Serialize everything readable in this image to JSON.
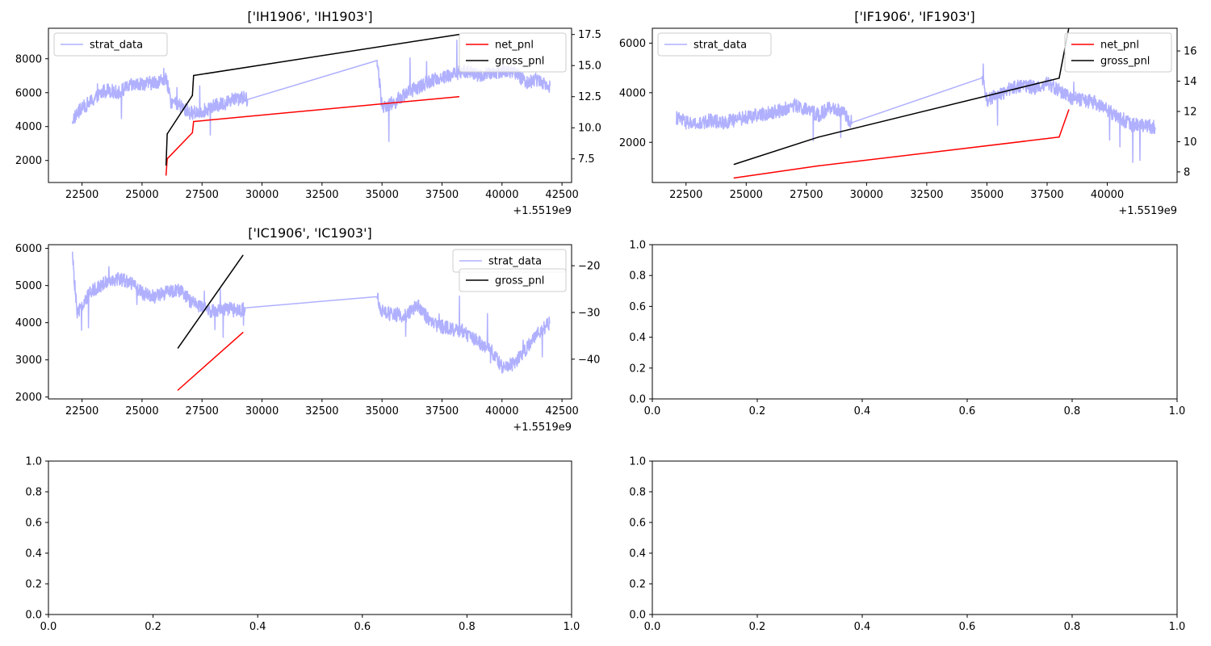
{
  "figure": {
    "background": "#ffffff"
  },
  "colors": {
    "strat_data": "#b0b0ff",
    "net_pnl": "#ff0000",
    "gross_pnl": "#000000"
  },
  "chart_data": [
    {
      "type": "line",
      "title": "['IH1906', 'IH1903']",
      "x_offset_label": "+1.5519e9",
      "xlim": [
        21100,
        42900
      ],
      "x_ticks": [
        22500,
        25000,
        27500,
        30000,
        32500,
        35000,
        37500,
        40000,
        42500
      ],
      "x_tick_labels": [
        "22500",
        "25000",
        "27500",
        "30000",
        "32500",
        "35000",
        "37500",
        "40000",
        "42500"
      ],
      "left_axis": {
        "ylim": [
          700,
          9800
        ],
        "ticks": [
          2000,
          4000,
          6000,
          8000
        ],
        "tick_labels": [
          "2000",
          "4000",
          "6000",
          "8000"
        ]
      },
      "right_axis": {
        "ylim": [
          5.6,
          18.0
        ],
        "ticks": [
          7.5,
          10.0,
          12.5,
          15.0,
          17.5
        ],
        "tick_labels": [
          "7.5",
          "10.0",
          "12.5",
          "15.0",
          "17.5"
        ]
      },
      "legend_left": {
        "position": "upper left",
        "entries": [
          "strat_data"
        ]
      },
      "legend_right": {
        "position": "upper right",
        "entries": [
          "net_pnl",
          "gross_pnl"
        ]
      },
      "series": [
        {
          "name": "strat_data",
          "axis": "left",
          "color": "#b0b0ff",
          "noisy": true,
          "x": [
            22100,
            22500,
            23000,
            23500,
            24000,
            24500,
            25000,
            25500,
            26000,
            26200,
            26600,
            27000,
            27500,
            28000,
            28500,
            29000,
            29400,
            34800,
            35000,
            35500,
            36000,
            36500,
            37000,
            37500,
            38000,
            38500,
            39000,
            39500,
            40000,
            40500,
            41000,
            41500,
            42000
          ],
          "y": [
            4400,
            5100,
            5600,
            6200,
            6000,
            6400,
            6500,
            6600,
            6800,
            5500,
            5200,
            4800,
            4900,
            5200,
            5400,
            5800,
            5600,
            7900,
            5200,
            5400,
            6000,
            6300,
            6700,
            6900,
            7100,
            7300,
            7000,
            7100,
            7300,
            7200,
            6600,
            6800,
            6400
          ]
        },
        {
          "name": "net_pnl",
          "axis": "right",
          "color": "#ff0000",
          "noisy": false,
          "x": [
            26000,
            26050,
            27100,
            27150,
            38200
          ],
          "y": [
            6.2,
            7.5,
            9.6,
            10.5,
            12.5
          ]
        },
        {
          "name": "gross_pnl",
          "axis": "right",
          "color": "#000000",
          "noisy": false,
          "x": [
            26000,
            26050,
            27100,
            27150,
            38200
          ],
          "y": [
            7.0,
            9.5,
            12.6,
            14.2,
            17.5
          ]
        }
      ]
    },
    {
      "type": "line",
      "title": "['IF1906', 'IF1903']",
      "x_offset_label": "+1.5519e9",
      "xlim": [
        21100,
        42900
      ],
      "x_ticks": [
        22500,
        25000,
        27500,
        30000,
        32500,
        35000,
        37500,
        40000
      ],
      "x_tick_labels": [
        "22500",
        "25000",
        "27500",
        "30000",
        "32500",
        "35000",
        "37500",
        "40000"
      ],
      "left_axis": {
        "ylim": [
          380,
          6600
        ],
        "ticks": [
          2000,
          4000,
          6000
        ],
        "tick_labels": [
          "2000",
          "4000",
          "6000"
        ]
      },
      "right_axis": {
        "ylim": [
          7.3,
          17.5
        ],
        "ticks": [
          8,
          10,
          12,
          14,
          16
        ],
        "tick_labels": [
          "8",
          "10",
          "12",
          "14",
          "16"
        ]
      },
      "legend_left": {
        "position": "upper left",
        "entries": [
          "strat_data"
        ]
      },
      "legend_right": {
        "position": "upper right",
        "entries": [
          "net_pnl",
          "gross_pnl"
        ]
      },
      "series": [
        {
          "name": "strat_data",
          "axis": "left",
          "color": "#b0b0ff",
          "noisy": true,
          "x": [
            22100,
            22500,
            23000,
            23500,
            24000,
            24500,
            25000,
            25500,
            26000,
            26500,
            27000,
            27500,
            28000,
            28500,
            29000,
            29400,
            34800,
            35000,
            35500,
            36000,
            36500,
            37000,
            37500,
            38000,
            38500,
            39000,
            39500,
            40000,
            40500,
            41000,
            41500,
            42000
          ],
          "y": [
            3000,
            2800,
            2700,
            2900,
            2800,
            2900,
            3000,
            3100,
            3200,
            3300,
            3500,
            3300,
            3100,
            3400,
            3200,
            2800,
            4600,
            3700,
            3900,
            4200,
            4300,
            4200,
            4400,
            4100,
            3800,
            3700,
            3600,
            3300,
            3000,
            2700,
            2700,
            2600
          ]
        },
        {
          "name": "net_pnl",
          "axis": "right",
          "color": "#ff0000",
          "noisy": false,
          "x": [
            24500,
            28000,
            38000,
            38400
          ],
          "y": [
            7.6,
            8.4,
            10.3,
            12.1
          ]
        },
        {
          "name": "gross_pnl",
          "axis": "right",
          "color": "#000000",
          "noisy": false,
          "x": [
            24500,
            28000,
            38000,
            38400
          ],
          "y": [
            8.5,
            10.3,
            14.2,
            17.5
          ]
        }
      ]
    },
    {
      "type": "line",
      "title": "['IC1906', 'IC1903']",
      "x_offset_label": "+1.5519e9",
      "xlim": [
        21100,
        42900
      ],
      "x_ticks": [
        22500,
        25000,
        27500,
        30000,
        32500,
        35000,
        37500,
        40000,
        42500
      ],
      "x_tick_labels": [
        "22500",
        "25000",
        "27500",
        "30000",
        "32500",
        "35000",
        "37500",
        "40000",
        "42500"
      ],
      "left_axis": {
        "ylim": [
          1950,
          6100
        ],
        "ticks": [
          2000,
          3000,
          4000,
          5000,
          6000
        ],
        "tick_labels": [
          "2000",
          "3000",
          "4000",
          "5000",
          "6000"
        ]
      },
      "right_axis": {
        "ylim": [
          -48.5,
          -15.5
        ],
        "ticks": [
          -40,
          -30,
          -20
        ],
        "tick_labels": [
          "−40",
          "−30",
          "−20"
        ]
      },
      "legend_left": {
        "position": "upper right",
        "entries": [
          "strat_data"
        ]
      },
      "legend_right": {
        "position": "upper right",
        "entries": [
          "gross_pnl"
        ]
      },
      "series": [
        {
          "name": "strat_data",
          "axis": "left",
          "color": "#b0b0ff",
          "noisy": true,
          "x": [
            22100,
            22300,
            22600,
            23000,
            23500,
            24000,
            24500,
            25000,
            25500,
            26000,
            26500,
            27000,
            27500,
            28000,
            28500,
            29000,
            29300,
            34800,
            35000,
            35500,
            36000,
            36500,
            37000,
            37500,
            38000,
            38500,
            39000,
            39500,
            40000,
            40500,
            41000,
            41500,
            42000
          ],
          "y": [
            5800,
            4200,
            4600,
            4900,
            5100,
            5200,
            5100,
            4800,
            4700,
            4800,
            4900,
            4600,
            4400,
            4300,
            4400,
            4300,
            4400,
            4700,
            4300,
            4200,
            4200,
            4500,
            4000,
            3900,
            3800,
            3700,
            3500,
            3300,
            2800,
            2900,
            3300,
            3700,
            4000
          ]
        },
        {
          "name": "net_pnl",
          "axis": "right",
          "color": "#ff0000",
          "noisy": false,
          "x": [
            26500,
            29200
          ],
          "y": [
            -46.6,
            -34.3
          ]
        },
        {
          "name": "gross_pnl",
          "axis": "right",
          "color": "#000000",
          "noisy": false,
          "x": [
            26500,
            29200
          ],
          "y": [
            -37.6,
            -17.8
          ]
        }
      ]
    },
    {
      "type": "line",
      "title": "",
      "empty": true,
      "xlim": [
        0,
        1
      ],
      "x_ticks": [
        0,
        0.2,
        0.4,
        0.6,
        0.8,
        1.0
      ],
      "x_tick_labels": [
        "0.0",
        "0.2",
        "0.4",
        "0.6",
        "0.8",
        "1.0"
      ],
      "left_axis": {
        "ylim": [
          0,
          1
        ],
        "ticks": [
          0,
          0.2,
          0.4,
          0.6,
          0.8,
          1.0
        ],
        "tick_labels": [
          "0.0",
          "0.2",
          "0.4",
          "0.6",
          "0.8",
          "1.0"
        ]
      },
      "series": []
    },
    {
      "type": "line",
      "title": "",
      "empty": true,
      "xlim": [
        0,
        1
      ],
      "x_ticks": [
        0,
        0.2,
        0.4,
        0.6,
        0.8,
        1.0
      ],
      "x_tick_labels": [
        "0.0",
        "0.2",
        "0.4",
        "0.6",
        "0.8",
        "1.0"
      ],
      "left_axis": {
        "ylim": [
          0,
          1
        ],
        "ticks": [
          0,
          0.2,
          0.4,
          0.6,
          0.8,
          1.0
        ],
        "tick_labels": [
          "0.0",
          "0.2",
          "0.4",
          "0.6",
          "0.8",
          "1.0"
        ]
      },
      "series": []
    },
    {
      "type": "line",
      "title": "",
      "empty": true,
      "xlim": [
        0,
        1
      ],
      "x_ticks": [
        0,
        0.2,
        0.4,
        0.6,
        0.8,
        1.0
      ],
      "x_tick_labels": [
        "0.0",
        "0.2",
        "0.4",
        "0.6",
        "0.8",
        "1.0"
      ],
      "left_axis": {
        "ylim": [
          0,
          1
        ],
        "ticks": [
          0,
          0.2,
          0.4,
          0.6,
          0.8,
          1.0
        ],
        "tick_labels": [
          "0.0",
          "0.2",
          "0.4",
          "0.6",
          "0.8",
          "1.0"
        ]
      },
      "series": []
    }
  ]
}
